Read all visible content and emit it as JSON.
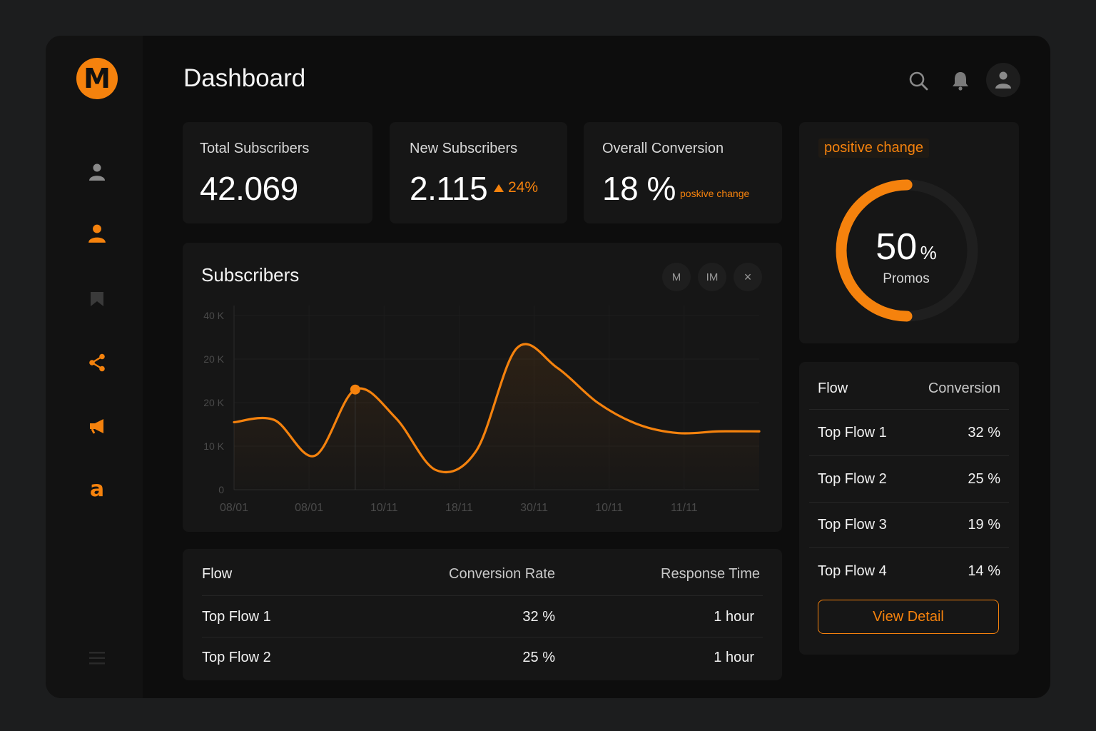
{
  "app": {
    "logo_letter": "M",
    "accent": "#f5820d"
  },
  "header": {
    "title": "Dashboard"
  },
  "sidebar": {
    "items": [
      {
        "icon": "user-icon",
        "active": false
      },
      {
        "icon": "user-icon",
        "active": true
      },
      {
        "icon": "bookmark-icon",
        "active": false
      },
      {
        "icon": "share-icon",
        "active": true
      },
      {
        "icon": "megaphone-icon",
        "active": true
      },
      {
        "icon": "a-letter-icon",
        "active": true,
        "glyph": "a"
      }
    ],
    "menu_icon": "menu-icon"
  },
  "topbar": {
    "icons": [
      "search-icon",
      "bell-icon",
      "avatar-icon"
    ]
  },
  "stats": {
    "total": {
      "label": "Total Subscribers",
      "value": "42.069"
    },
    "new": {
      "label": "New Subscribers",
      "value": "2.115",
      "change": "24%"
    },
    "conversion": {
      "label": "Overall Conversion",
      "value": "18 %",
      "note": "poskive change"
    }
  },
  "promo": {
    "tag": "positive change",
    "value": "50",
    "unit": "%",
    "label": "Promos",
    "progress": 0.5
  },
  "chart": {
    "title": "Subscribers",
    "controls": [
      "M",
      "IM",
      "×"
    ]
  },
  "chart_data": {
    "type": "line",
    "title": "Subscribers",
    "y_tick_labels": [
      "0",
      "10 K",
      "20 K",
      "20 K",
      "40 K"
    ],
    "x_tick_labels": [
      "08/01",
      "08/01",
      "10/11",
      "18/11",
      "30/11",
      "10/11",
      "11/11"
    ],
    "ylim": [
      0,
      40
    ],
    "grid": true,
    "series": [
      {
        "x": [
          0,
          0.5,
          1,
          1.5,
          2,
          2.5,
          3,
          3.5,
          4,
          4.5,
          5,
          5.5,
          6,
          6.5
        ],
        "values": [
          15.5,
          16,
          7.8,
          23,
          16.5,
          4.5,
          9,
          32.5,
          28,
          20,
          15,
          13,
          13.4,
          13.4
        ],
        "highlight_index": 3
      }
    ]
  },
  "flow_table": {
    "headers": [
      "Flow",
      "Conversion Rate",
      "Response Time"
    ],
    "rows": [
      [
        "Top Flow 1",
        "32 %",
        "1 hour"
      ],
      [
        "Top Flow 2",
        "25 %",
        "1 hour"
      ]
    ]
  },
  "flow_list": {
    "headers": [
      "Flow",
      "Conversion"
    ],
    "rows": [
      [
        "Top Flow 1",
        "32 %"
      ],
      [
        "Top Flow 2",
        "25 %"
      ],
      [
        "Top Flow 3",
        "19 %"
      ],
      [
        "Top Flow 4",
        "14 %"
      ]
    ],
    "button": "View Detail"
  }
}
